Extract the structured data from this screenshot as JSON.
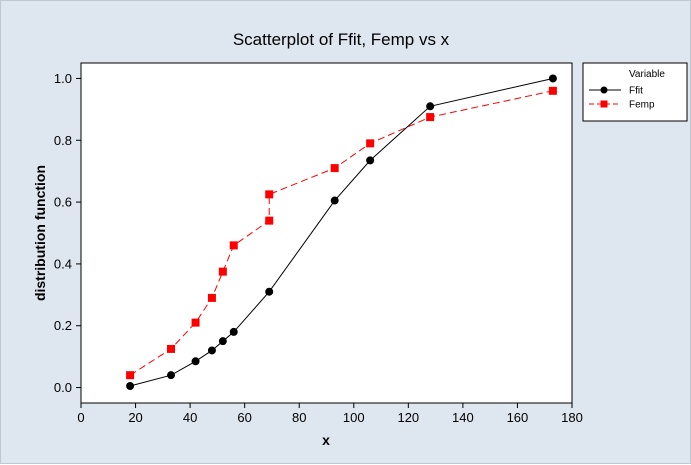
{
  "chart_data": {
    "type": "scatter",
    "title": "Scatterplot of Ffit, Femp vs x",
    "xlabel": "x",
    "ylabel": "distribution function",
    "xlim": [
      0,
      180
    ],
    "ylim": [
      -0.05,
      1.05
    ],
    "x_ticks": [
      0,
      20,
      40,
      60,
      80,
      100,
      120,
      140,
      160,
      180
    ],
    "y_ticks": [
      0.0,
      0.2,
      0.4,
      0.6,
      0.8,
      1.0
    ],
    "x_tick_labels": [
      "0",
      "20",
      "40",
      "60",
      "80",
      "100",
      "120",
      "140",
      "160",
      "180"
    ],
    "y_tick_labels": [
      "0.0",
      "0.2",
      "0.4",
      "0.6",
      "0.8",
      "1.0"
    ],
    "grid": false,
    "legend": {
      "title": "Variable",
      "placement": "right"
    },
    "series": [
      {
        "name": "Ffit",
        "color": "#000000",
        "marker": "circle",
        "line": "solid",
        "points": [
          [
            18,
            0.005
          ],
          [
            33,
            0.04
          ],
          [
            42,
            0.085
          ],
          [
            48,
            0.12
          ],
          [
            52,
            0.15
          ],
          [
            56,
            0.18
          ],
          [
            69,
            0.31
          ],
          [
            93,
            0.605
          ],
          [
            106,
            0.735
          ],
          [
            128,
            0.91
          ],
          [
            173,
            1.0
          ]
        ]
      },
      {
        "name": "Femp",
        "color": "#ff0000",
        "marker": "square",
        "line": "dashed",
        "points": [
          [
            18,
            0.04
          ],
          [
            33,
            0.125
          ],
          [
            42,
            0.21
          ],
          [
            48,
            0.29
          ],
          [
            52,
            0.375
          ],
          [
            56,
            0.46
          ],
          [
            69,
            0.54
          ],
          [
            69,
            0.625
          ],
          [
            93,
            0.71
          ],
          [
            106,
            0.79
          ],
          [
            128,
            0.875
          ],
          [
            173,
            0.96
          ]
        ]
      }
    ]
  }
}
